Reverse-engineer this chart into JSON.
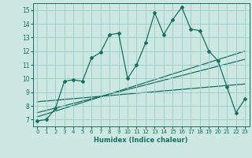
{
  "xlabel": "Humidex (Indice chaleur)",
  "xlim": [
    -0.5,
    23.5
  ],
  "ylim": [
    6.5,
    15.5
  ],
  "xticks": [
    0,
    1,
    2,
    3,
    4,
    5,
    6,
    7,
    8,
    9,
    10,
    11,
    12,
    13,
    14,
    15,
    16,
    17,
    18,
    19,
    20,
    21,
    22,
    23
  ],
  "yticks": [
    7,
    8,
    9,
    10,
    11,
    12,
    13,
    14,
    15
  ],
  "background_color": "#cce8e0",
  "grid_color": "#99cccc",
  "line_color": "#1a7060",
  "series1_x": [
    0,
    1,
    2,
    3,
    4,
    5,
    6,
    7,
    8,
    9,
    10,
    11,
    12,
    13,
    14,
    15,
    16,
    17,
    18,
    19,
    20,
    21,
    22,
    23
  ],
  "series1_y": [
    6.9,
    7.0,
    7.8,
    9.8,
    9.9,
    9.8,
    11.5,
    11.9,
    13.2,
    13.3,
    10.0,
    11.0,
    12.6,
    14.8,
    13.2,
    14.3,
    15.2,
    13.6,
    13.5,
    12.0,
    11.3,
    9.4,
    7.5,
    8.5
  ],
  "trend1_x": [
    0,
    23
  ],
  "trend1_y": [
    7.2,
    12.0
  ],
  "trend2_x": [
    0,
    23
  ],
  "trend2_y": [
    7.5,
    11.4
  ],
  "trend3_x": [
    0,
    23
  ],
  "trend3_y": [
    8.3,
    9.6
  ]
}
